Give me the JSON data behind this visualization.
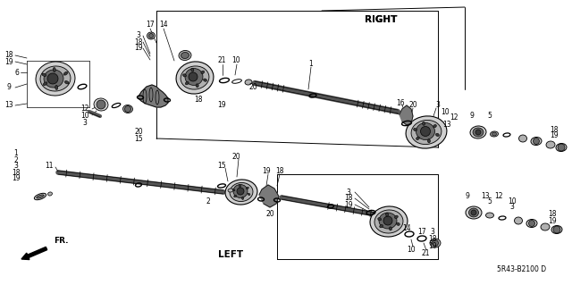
{
  "bg_color": "#ffffff",
  "line_color": "#000000",
  "text_color": "#000000",
  "diagram_code": "5R43-B2100 D",
  "right_label": "RIGHT",
  "left_label": "LEFT",
  "fr_label": "FR.",
  "figsize": [
    6.4,
    3.19
  ],
  "dpi": 100,
  "gray_dark": "#3a3a3a",
  "gray_mid": "#6a6a6a",
  "gray_light": "#b0b0b0",
  "gray_lighter": "#d0d0d0",
  "shaft_color": "#555555",
  "boot_color": "#7a7a7a"
}
